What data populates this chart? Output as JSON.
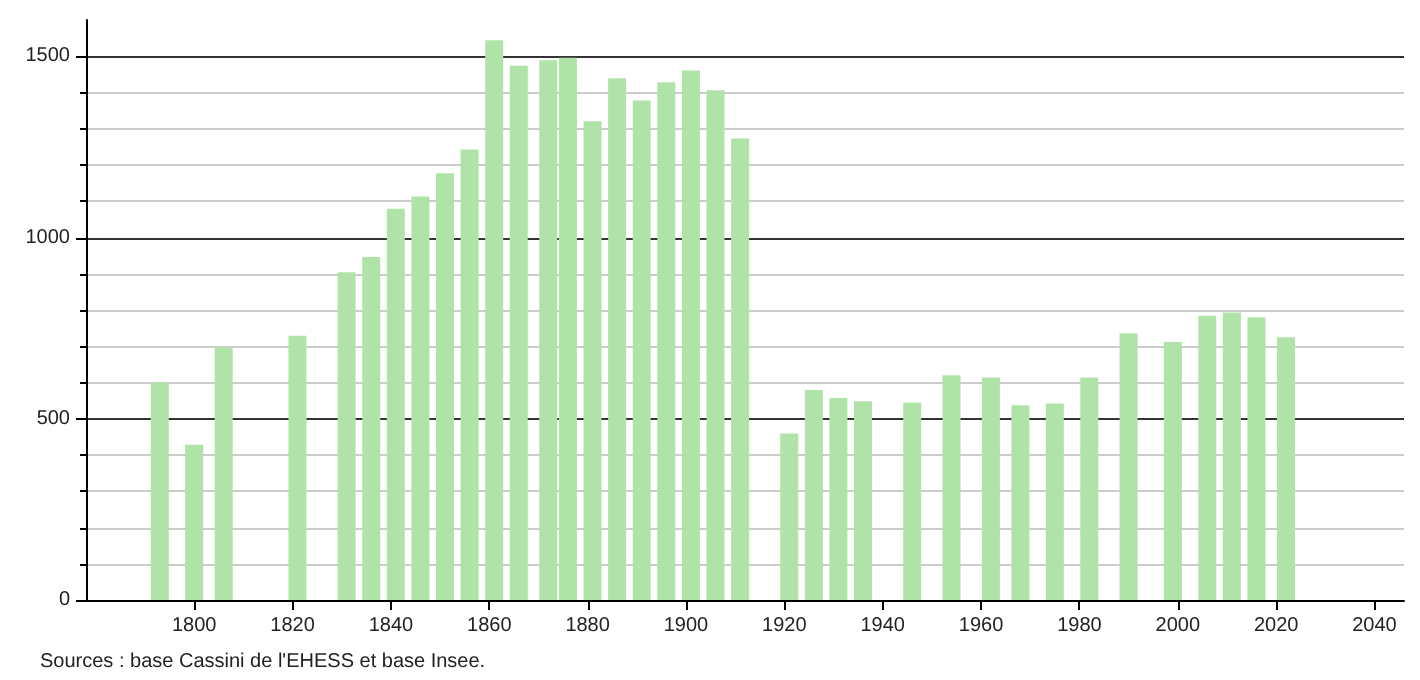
{
  "chart_data": {
    "type": "bar",
    "color": "#b0e3a8",
    "x": [
      1793,
      1800,
      1806,
      1821,
      1831,
      1836,
      1841,
      1846,
      1851,
      1856,
      1861,
      1866,
      1872,
      1876,
      1881,
      1886,
      1891,
      1896,
      1901,
      1906,
      1911,
      1921,
      1926,
      1931,
      1936,
      1946,
      1954,
      1962,
      1968,
      1975,
      1982,
      1990,
      1999,
      2006,
      2011,
      2016,
      2022
    ],
    "values": [
      600,
      428,
      697,
      729,
      904,
      946,
      1079,
      1113,
      1177,
      1243,
      1544,
      1474,
      1489,
      1496,
      1321,
      1439,
      1378,
      1428,
      1461,
      1406,
      1273,
      459,
      579,
      557,
      548,
      544,
      620,
      614,
      537,
      542,
      614,
      736,
      712,
      784,
      793,
      780,
      725
    ],
    "xlim": [
      1778,
      2046
    ],
    "xticks": [
      1800,
      1820,
      1840,
      1860,
      1880,
      1900,
      1920,
      1940,
      1960,
      1980,
      2000,
      2020,
      2040
    ],
    "ylim": [
      0,
      1600
    ],
    "yticks": [
      0,
      500,
      1000,
      1500
    ],
    "grid": "y",
    "annotations": [
      "Sources : base Cassini de l'EHESS et base Insee."
    ]
  }
}
